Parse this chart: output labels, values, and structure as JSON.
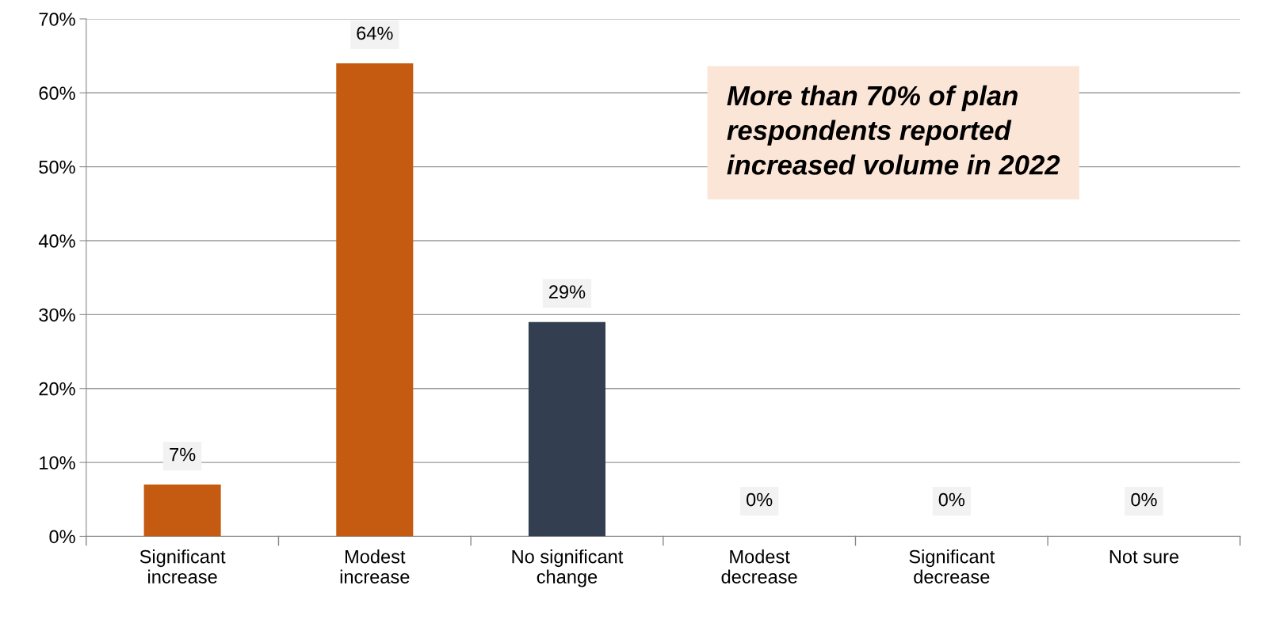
{
  "chart_data": {
    "type": "bar",
    "categories": [
      "Significant\nincrease",
      "Modest\nincrease",
      "No significant\nchange",
      "Modest\ndecrease",
      "Significant\ndecrease",
      "Not sure"
    ],
    "values": [
      7,
      64,
      29,
      0,
      0,
      0
    ],
    "colors": [
      "#c55a11",
      "#c55a11",
      "#333f50",
      "#333f50",
      "#333f50",
      "#333f50"
    ],
    "ylim": [
      0,
      70
    ],
    "yticks": [
      {
        "value": 0,
        "label": "0%"
      },
      {
        "value": 10,
        "label": "10%"
      },
      {
        "value": 20,
        "label": "20%"
      },
      {
        "value": 30,
        "label": "30%"
      },
      {
        "value": 40,
        "label": "40%"
      },
      {
        "value": 50,
        "label": "50%"
      },
      {
        "value": 60,
        "label": "60%"
      },
      {
        "value": 70,
        "label": "70%"
      }
    ],
    "grid": "y",
    "value_labels": [
      "7%",
      "64%",
      "29%",
      "0%",
      "0%",
      "0%"
    ],
    "annotations": [
      "More than 70% of plan\nrespondents reported\nincreased volume in 2022"
    ]
  }
}
